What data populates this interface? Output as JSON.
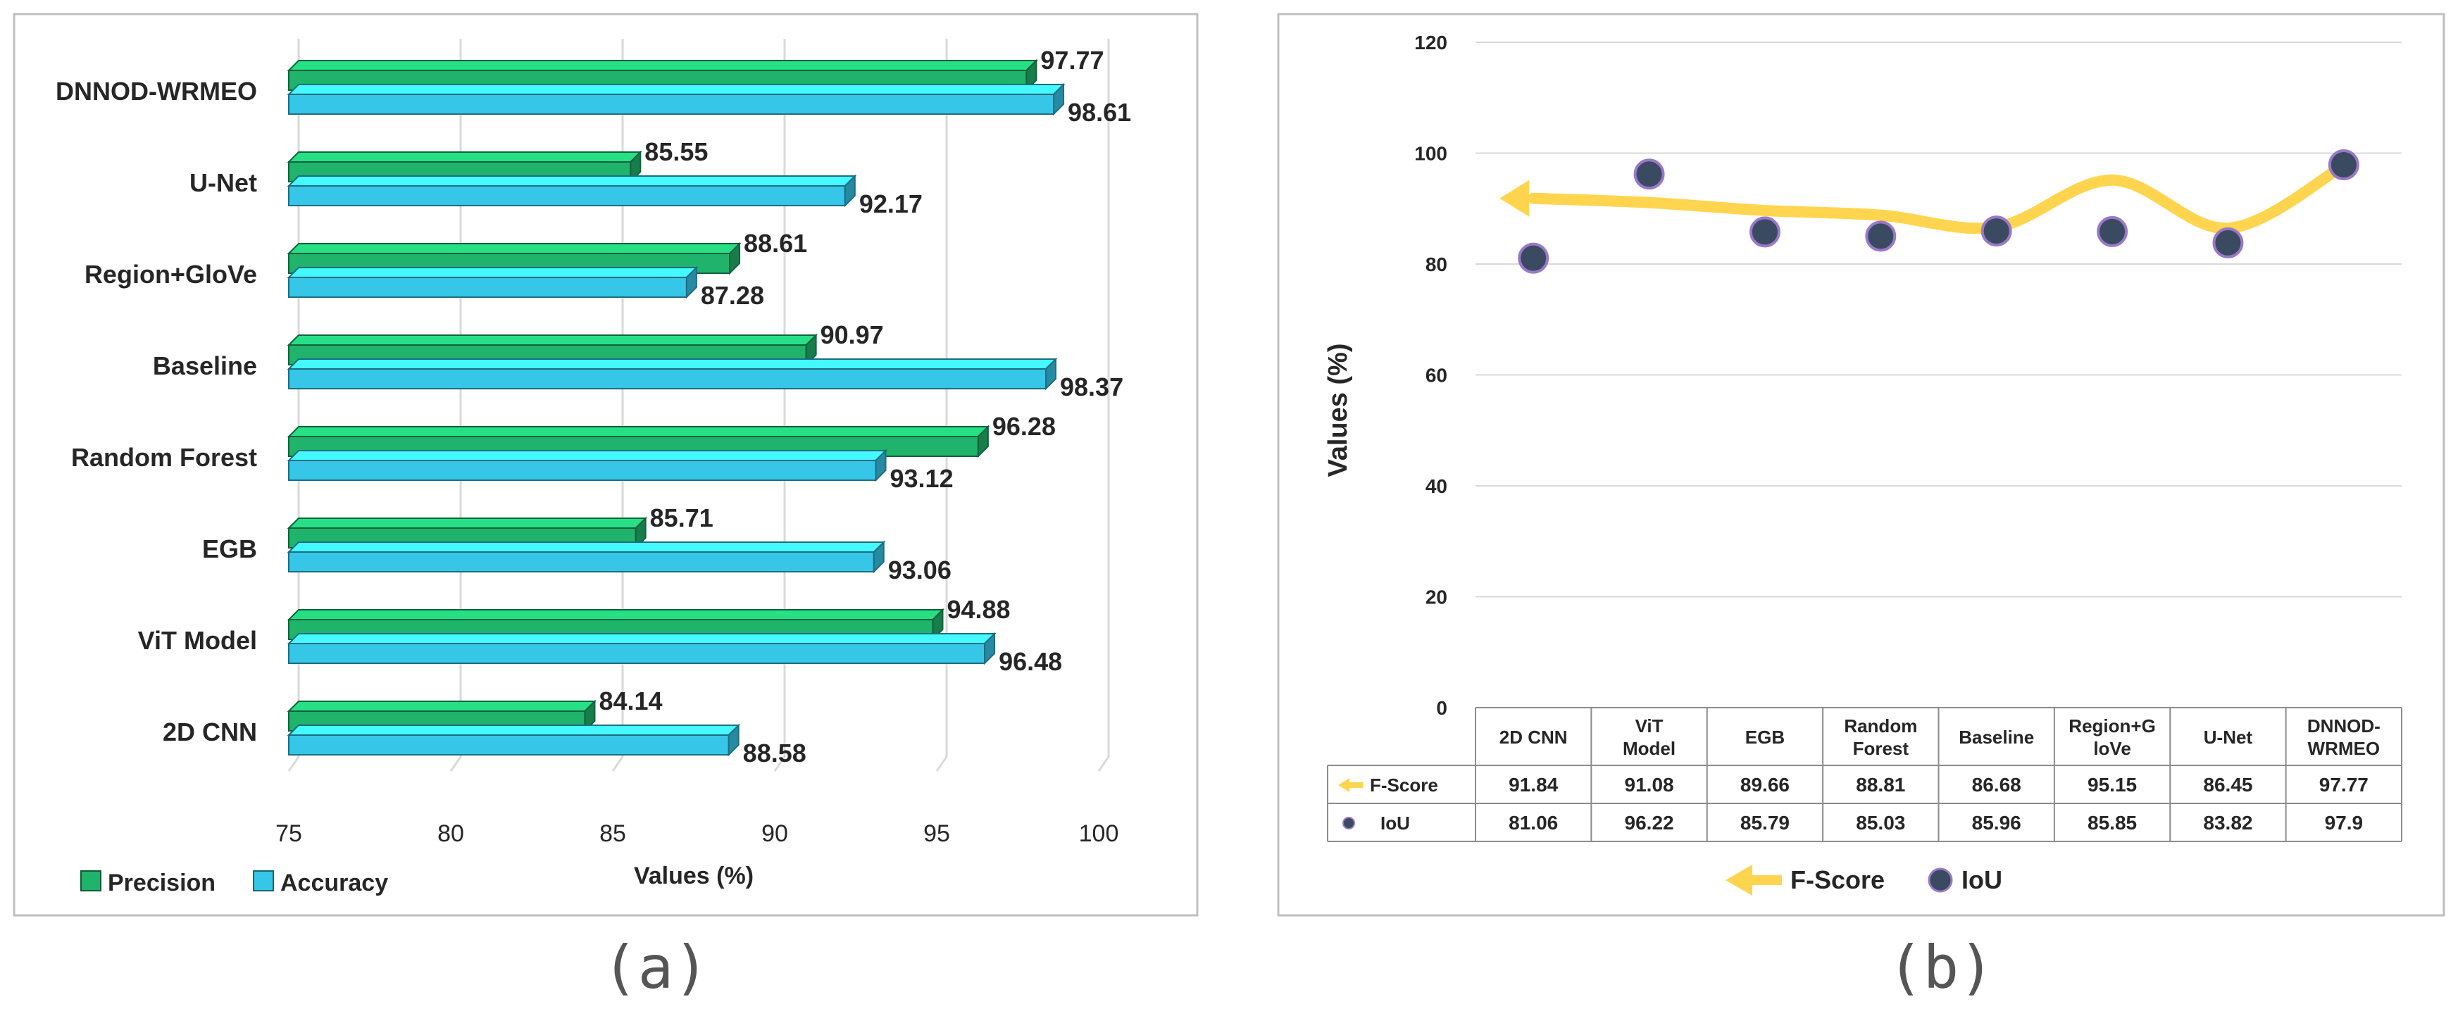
{
  "captions": {
    "a": "(a)",
    "b": "(b)"
  },
  "colors": {
    "precision": "#1fb36b",
    "accuracy": "#36c7e8",
    "fscore": "#ffd54f",
    "iou": "#3a4a60",
    "grid": "#d9d9d9",
    "text": "#262626"
  },
  "chart_data": [
    {
      "type": "bar",
      "orientation": "horizontal",
      "categories": [
        "DNNOD-WRMEO",
        "U-Net",
        "Region+GloVe",
        "Baseline",
        "Random Forest",
        "EGB",
        "ViT Model",
        "2D CNN"
      ],
      "series": [
        {
          "name": "Precision",
          "values": [
            97.77,
            85.55,
            88.61,
            90.97,
            96.28,
            85.71,
            94.88,
            84.14
          ]
        },
        {
          "name": "Accuracy",
          "values": [
            98.61,
            92.17,
            87.28,
            98.37,
            93.12,
            93.06,
            96.48,
            88.58
          ]
        }
      ],
      "xlabel": "Values (%)",
      "xlim": [
        75,
        100
      ],
      "xticks": [
        75,
        80,
        85,
        90,
        95,
        100
      ],
      "legend": "bottom-left",
      "grid": true
    },
    {
      "type": "line",
      "categories": [
        "2D CNN",
        "ViT Model",
        "EGB",
        "Random Forest",
        "Baseline",
        "Region+GloVe",
        "U-Net",
        "DNNOD-WRMEO"
      ],
      "table_headers": [
        "2D CNN",
        "ViT\nModel",
        "EGB",
        "Random\nForest",
        "Baseline",
        "Region+G\nloVe",
        "U-Net",
        "DNNOD-\nWRMEO"
      ],
      "series": [
        {
          "name": "F-Score",
          "values": [
            91.84,
            91.08,
            89.66,
            88.81,
            86.68,
            95.15,
            86.45,
            97.77
          ]
        },
        {
          "name": "IoU",
          "values": [
            81.06,
            96.22,
            85.79,
            85.03,
            85.96,
            85.85,
            83.82,
            97.9
          ]
        }
      ],
      "ylabel": "Values (%)",
      "ylim": [
        0,
        120
      ],
      "yticks": [
        0,
        20,
        40,
        60,
        80,
        100,
        120
      ],
      "legend": "bottom-center",
      "grid": true
    }
  ]
}
